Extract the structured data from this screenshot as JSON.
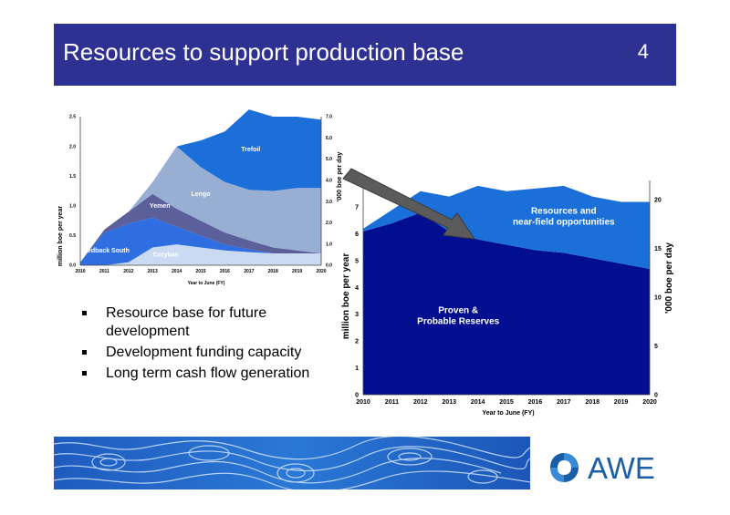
{
  "slide": {
    "title": "Resources to support production base",
    "page_number": "4"
  },
  "bullets": [
    "Resource base for future development",
    "Development funding capacity",
    "Long term cash flow generation"
  ],
  "logo": {
    "text": "AWE",
    "color": "#1b5ea8"
  },
  "colors": {
    "header": "#2e3192"
  },
  "chart_data": [
    {
      "type": "area",
      "stacked": true,
      "x": [
        2010,
        2011,
        2012,
        2013,
        2014,
        2015,
        2016,
        2017,
        2018,
        2019,
        2020
      ],
      "xlabel": "Year to June (FY)",
      "ylabel": "million boe per year",
      "y2label": "'000 boe per day",
      "ylim": [
        0,
        2.5
      ],
      "y2lim": [
        0,
        7.0
      ],
      "yticks": [
        "0.0",
        "0.5",
        "1.0",
        "1.5",
        "2.0",
        "2.5"
      ],
      "y2ticks": [
        "0.0",
        "1.0",
        "2.0",
        "3.0",
        "4.0",
        "5.0",
        "6.0",
        "7.0"
      ],
      "series": [
        {
          "name": "Corybas",
          "color": "#c9daf2",
          "values": [
            0,
            0,
            0.05,
            0.3,
            0.35,
            0.3,
            0.25,
            0.22,
            0.2,
            0.2,
            0.2
          ]
        },
        {
          "name": "Redback South",
          "color": "#2e6ee0",
          "values": [
            0.05,
            0.55,
            0.65,
            0.5,
            0.3,
            0.2,
            0.1,
            0.05,
            0,
            0,
            0
          ]
        },
        {
          "name": "Yemen",
          "color": "#5b5f9a",
          "values": [
            0,
            0.05,
            0.2,
            0.4,
            0.3,
            0.25,
            0.2,
            0.15,
            0.1,
            0.05,
            0
          ]
        },
        {
          "name": "Lengo",
          "color": "#98aed3",
          "values": [
            0,
            0,
            0,
            0.2,
            1.05,
            0.9,
            0.85,
            0.85,
            0.95,
            1.05,
            1.1
          ]
        },
        {
          "name": "Trefoil",
          "color": "#1c6fd9",
          "values": [
            0,
            0,
            0,
            0,
            0,
            0.45,
            0.85,
            1.35,
            1.25,
            1.2,
            1.15
          ]
        }
      ]
    },
    {
      "type": "area",
      "stacked": true,
      "x": [
        2010,
        2011,
        2012,
        2013,
        2014,
        2015,
        2016,
        2017,
        2018,
        2019,
        2020
      ],
      "xlabel": "Year to June (FY)",
      "ylabel": "million boe per year",
      "y2label": "'000 boe per day",
      "ylim": [
        0,
        8
      ],
      "y2lim": [
        0,
        22
      ],
      "yticks": [
        "0",
        "1",
        "2",
        "3",
        "4",
        "5",
        "6",
        "7",
        "8"
      ],
      "y2ticks": [
        "0",
        "5",
        "10",
        "15",
        "20"
      ],
      "series": [
        {
          "name": "Proven & Probable Reserves",
          "color": "#000e8f",
          "values": [
            6.1,
            6.4,
            6.8,
            6.1,
            5.8,
            5.6,
            5.4,
            5.3,
            5.1,
            4.9,
            4.7
          ]
        },
        {
          "name": "Resources and near-field opportunities",
          "color": "#1b6fd8",
          "values": [
            0.1,
            0.5,
            0.8,
            1.3,
            2.0,
            2.0,
            2.3,
            2.5,
            2.3,
            2.3,
            2.5
          ]
        }
      ]
    }
  ]
}
